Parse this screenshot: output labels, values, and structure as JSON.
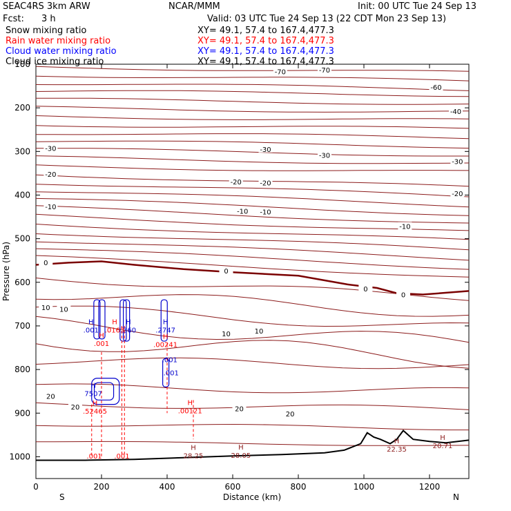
{
  "header": {
    "model": "SEAC4RS  3km ARW",
    "center": "NCAR/MMM",
    "init": "Init: 00 UTC Tue 24 Sep 13",
    "fcst_label": "Fcst:",
    "fcst_value": "3 h",
    "valid": "Valid: 03 UTC Tue 24 Sep 13 (22 CDT Mon 23 Sep 13)",
    "fields": [
      {
        "name": "Snow mixing ratio",
        "xy": "XY=  49.1, 57.4 to 167.4,477.3",
        "color": "#000000"
      },
      {
        "name": "Rain water mixing ratio",
        "xy": "XY=  49.1, 57.4 to 167.4,477.3",
        "color": "#ff0000"
      },
      {
        "name": "Cloud water mixing ratio",
        "xy": "XY=  49.1, 57.4 to 167.4,477.3",
        "color": "#0000ff"
      },
      {
        "name": "Cloud ice mixing ratio",
        "xy": "XY=  49.1, 57.4 to 167.4,477.3",
        "color": "#000000"
      }
    ]
  },
  "chart_data": {
    "type": "line",
    "xlabel": "Distance (km)",
    "ylabel": "Pressure (hPa)",
    "xlim": [
      0,
      1320
    ],
    "ylim": [
      1050,
      100
    ],
    "x_ticks": [
      0,
      200,
      400,
      600,
      800,
      1000,
      1200
    ],
    "y_ticks": [
      100,
      200,
      300,
      400,
      500,
      600,
      700,
      800,
      900,
      1000
    ],
    "direction_labels": {
      "left": "S",
      "right": "N"
    },
    "colors": {
      "temperature": "#8b1a1a",
      "rain": "#ff0000",
      "cloud_water": "#0000cc",
      "terrain": "#000000"
    },
    "temperature_contour_labels": [
      {
        "text": "-70",
        "x": 745,
        "p": 118
      },
      {
        "text": "-70",
        "x": 880,
        "p": 114
      },
      {
        "text": "-60",
        "x": 1220,
        "p": 154
      },
      {
        "text": "-40",
        "x": 1280,
        "p": 209
      },
      {
        "text": "-30",
        "x": 45,
        "p": 294
      },
      {
        "text": "-30",
        "x": 700,
        "p": 296
      },
      {
        "text": "-30",
        "x": 880,
        "p": 310
      },
      {
        "text": "-30",
        "x": 1285,
        "p": 324
      },
      {
        "text": "-20",
        "x": 45,
        "p": 353
      },
      {
        "text": "-20",
        "x": 610,
        "p": 371
      },
      {
        "text": "-20",
        "x": 700,
        "p": 373
      },
      {
        "text": "-20",
        "x": 1285,
        "p": 398
      },
      {
        "text": "-10",
        "x": 45,
        "p": 428
      },
      {
        "text": "-10",
        "x": 630,
        "p": 438
      },
      {
        "text": "-10",
        "x": 700,
        "p": 440
      },
      {
        "text": "-10",
        "x": 1125,
        "p": 473
      },
      {
        "text": "0",
        "x": 30,
        "p": 556
      },
      {
        "text": "0",
        "x": 580,
        "p": 575
      },
      {
        "text": "0",
        "x": 1005,
        "p": 616
      },
      {
        "text": "0",
        "x": 1120,
        "p": 630
      },
      {
        "text": "10",
        "x": 30,
        "p": 659
      },
      {
        "text": "10",
        "x": 85,
        "p": 663
      },
      {
        "text": "10",
        "x": 580,
        "p": 719
      },
      {
        "text": "10",
        "x": 680,
        "p": 713
      },
      {
        "text": "20",
        "x": 45,
        "p": 862
      },
      {
        "text": "20",
        "x": 120,
        "p": 887
      },
      {
        "text": "20",
        "x": 620,
        "p": 891
      },
      {
        "text": "20",
        "x": 775,
        "p": 903
      }
    ],
    "highs": [
      {
        "label": "H",
        "value": ".001",
        "x": 168,
        "p": 712,
        "color": "#0000cc"
      },
      {
        "label": "H",
        "value": ".001",
        "x": 200,
        "p": 743,
        "color": "#ff0000"
      },
      {
        "label": "H",
        "value": ".0163",
        "x": 240,
        "p": 712,
        "color": "#ff0000"
      },
      {
        "label": "H",
        "value": ".360",
        "x": 282,
        "p": 712,
        "color": "#0000cc"
      },
      {
        "label": "H",
        "value": ".2747",
        "x": 395,
        "p": 712,
        "color": "#0000cc"
      },
      {
        "label": "H",
        "value": ".00241",
        "x": 395,
        "p": 745,
        "color": "#ff0000"
      },
      {
        "label": "",
        "value": ".001",
        "x": 408,
        "p": 780,
        "color": "#0000cc"
      },
      {
        "label": "",
        "value": ".001",
        "x": 412,
        "p": 810,
        "color": "#0000cc"
      },
      {
        "label": "H",
        "value": "7507",
        "x": 175,
        "p": 858,
        "color": "#0000cc"
      },
      {
        "label": "H",
        "value": ".52465",
        "x": 180,
        "p": 898,
        "color": "#ff0000"
      },
      {
        "label": "H",
        "value": ".00121",
        "x": 470,
        "p": 897,
        "color": "#ff0000"
      },
      {
        "label": "H",
        "value": "28.25",
        "x": 480,
        "p": 1000,
        "color": "#8b1a1a"
      },
      {
        "label": "H",
        "value": "28.05",
        "x": 625,
        "p": 999,
        "color": "#8b1a1a"
      },
      {
        "label": "H",
        "value": "22.35",
        "x": 1100,
        "p": 985,
        "color": "#8b1a1a"
      },
      {
        "label": "H",
        "value": "20.71",
        "x": 1240,
        "p": 977,
        "color": "#8b1a1a"
      }
    ],
    "extra_labels": [
      {
        "text": ".001",
        "x": 178,
        "p": 1004,
        "color": "#ff0000"
      },
      {
        "text": ".001",
        "x": 262,
        "p": 1004,
        "color": "#ff0000"
      }
    ],
    "terrain": [
      [
        0,
        1008
      ],
      [
        150,
        1008
      ],
      [
        300,
        1006
      ],
      [
        450,
        1002
      ],
      [
        600,
        998
      ],
      [
        750,
        995
      ],
      [
        880,
        991
      ],
      [
        940,
        985
      ],
      [
        990,
        970
      ],
      [
        1010,
        945
      ],
      [
        1030,
        955
      ],
      [
        1050,
        960
      ],
      [
        1080,
        970
      ],
      [
        1100,
        960
      ],
      [
        1120,
        940
      ],
      [
        1150,
        960
      ],
      [
        1200,
        965
      ],
      [
        1250,
        968
      ],
      [
        1320,
        962
      ]
    ]
  }
}
